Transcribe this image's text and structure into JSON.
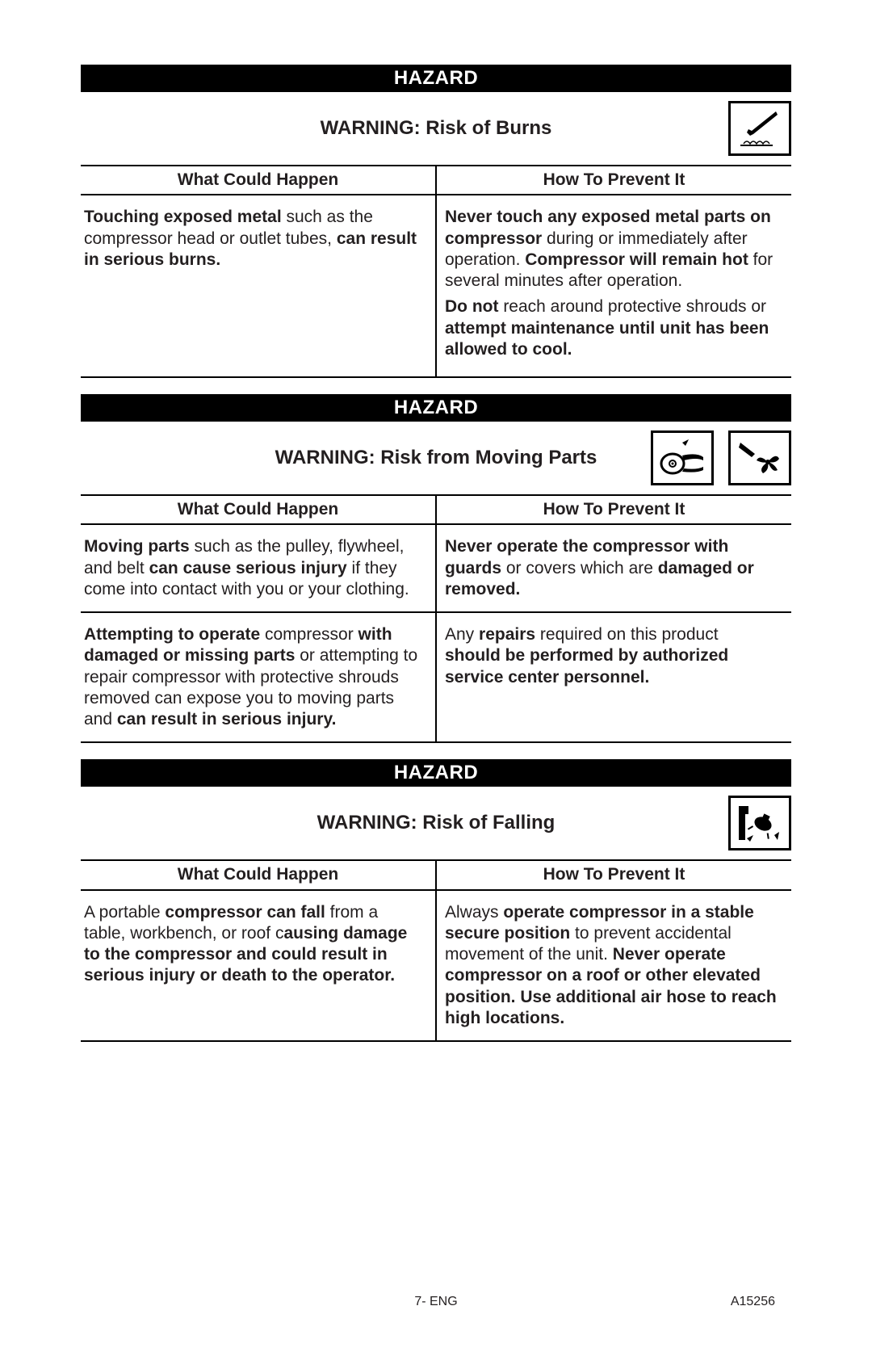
{
  "colors": {
    "text": "#231f20",
    "background": "#ffffff",
    "bar_bg": "#000000",
    "bar_text": "#ffffff",
    "rule": "#000000"
  },
  "typography": {
    "body_fontsize_pt": 16,
    "heading_fontsize_pt": 18,
    "font_family": "Arial, Helvetica, sans-serif"
  },
  "footer": {
    "center": "7- ENG",
    "right": "A15256"
  },
  "sections": [
    {
      "hazard_label": "HAZARD",
      "warning": "WARNING: Risk of Burns",
      "icons": [
        "burn-hand"
      ],
      "header_left": "What Could Happen",
      "header_right": "How To Prevent It",
      "rows": [
        {
          "left_html": "<b>Touching exposed metal</b> such as the compressor head or outlet tubes, <b>can result in serious burns.</b>",
          "right_html": "<p class='para'><b>Never touch any exposed metal parts on compressor</b> during or immediately after operation. <b>Compressor will remain hot</b> for several minutes after operation.</p><p class='para'><b>Do not</b> reach around protective shrouds or <b>attempt maintenance until unit has been allowed to cool.</b></p>"
        }
      ]
    },
    {
      "hazard_label": "HAZARD",
      "warning": "WARNING: Risk from Moving Parts",
      "icons": [
        "belt-pulley",
        "fan-hand"
      ],
      "header_left": "What Could Happen",
      "header_right": "How To Prevent It",
      "rows": [
        {
          "left_html": "<b>Moving parts</b> such as the pulley, flywheel, and belt <b>can cause serious injury</b> if they come into contact with you or your clothing.",
          "right_html": "<b>Never operate the compressor with guards</b> or covers which are <b>damaged or removed.</b>"
        },
        {
          "left_html": "<b>Attempting to operate</b> compressor <b>with damaged or missing parts</b> or attempting to repair compressor with protective shrouds removed can expose you to moving parts and <b>can result in serious injury.</b>",
          "right_html": "Any <b>repairs</b> required on this product <b>should be performed by authorized service center personnel.</b>"
        }
      ]
    },
    {
      "hazard_label": "HAZARD",
      "warning": "WARNING: Risk of Falling",
      "icons": [
        "falling-compressor"
      ],
      "header_left": "What Could Happen",
      "header_right": "How To Prevent It",
      "rows": [
        {
          "left_html": "A portable <b>compressor can fall</b> from a table, workbench, or roof c<b>ausing damage to the compressor and could result in serious injury or death to the operator.</b>",
          "right_html": "Always <b>operate compressor in a stable secure position</b> to prevent accidental movement of the unit. <b>Never operate compressor on a roof or other elevated position. Use additional air hose to reach high locations.</b>"
        }
      ]
    }
  ]
}
